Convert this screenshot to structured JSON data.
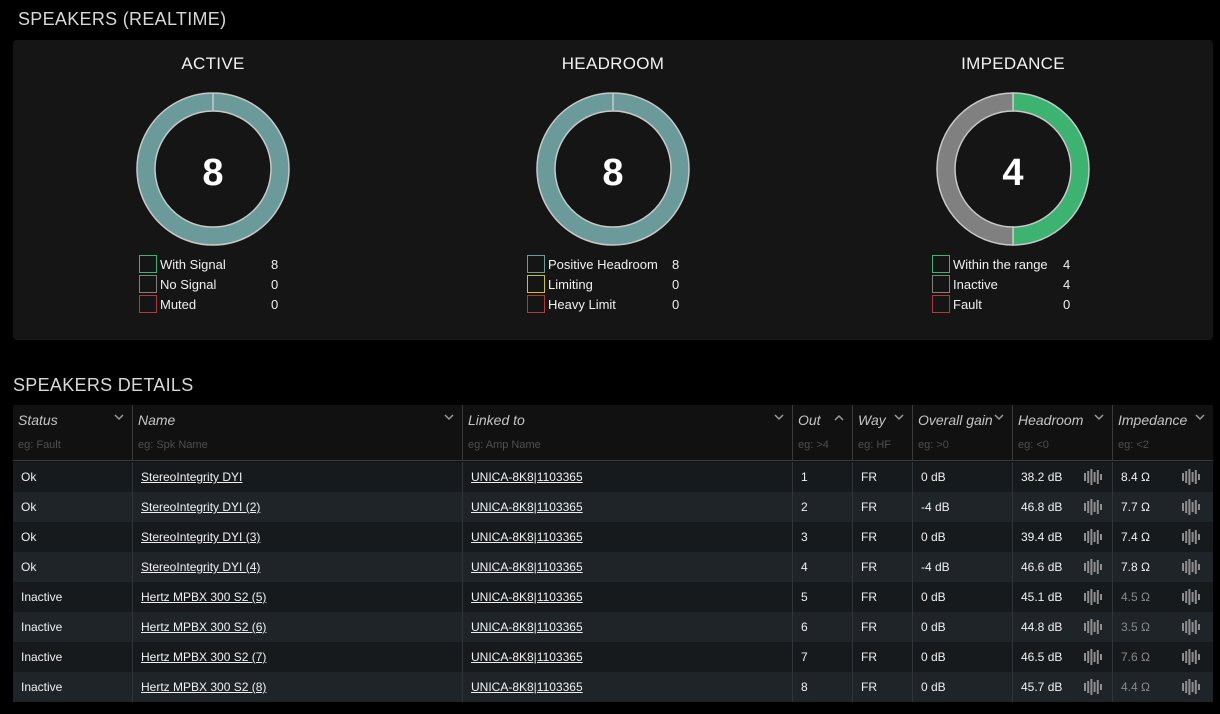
{
  "realtime_title": "SPEAKERS (REALTIME)",
  "details_title": "SPEAKERS DETAILS",
  "colors": {
    "teal": "#6a9a9a",
    "green": "#3cb371",
    "gray": "#808080",
    "yellow": "#c8c032",
    "red": "#b03a3a"
  },
  "gauges": [
    {
      "title": "ACTIVE",
      "count": "8",
      "legend": [
        {
          "label": "With Signal",
          "value": "8",
          "color": "#3cb371"
        },
        {
          "label": "No Signal",
          "value": "0",
          "color": "#808080"
        },
        {
          "label": "Muted",
          "value": "0",
          "color": "#b03a3a"
        }
      ],
      "segments": [
        {
          "value": 8,
          "color": "#6a9a9a"
        }
      ]
    },
    {
      "title": "HEADROOM",
      "count": "8",
      "legend": [
        {
          "label": "Positive Headroom",
          "value": "8",
          "color": "#6a9a9a"
        },
        {
          "label": "Limiting",
          "value": "0",
          "color": "#c8c032"
        },
        {
          "label": "Heavy Limit",
          "value": "0",
          "color": "#b03a3a"
        }
      ],
      "segments": [
        {
          "value": 8,
          "color": "#6a9a9a"
        }
      ]
    },
    {
      "title": "IMPEDANCE",
      "count": "4",
      "legend": [
        {
          "label": "Within the range",
          "value": "4",
          "color": "#3cb371"
        },
        {
          "label": "Inactive",
          "value": "4",
          "color": "#808080"
        },
        {
          "label": "Fault",
          "value": "0",
          "color": "#b03a3a"
        }
      ],
      "segments": [
        {
          "value": 4,
          "color": "#3cb371"
        },
        {
          "value": 4,
          "color": "#808080"
        }
      ]
    }
  ],
  "columns": [
    {
      "label": "Status",
      "filter": "eg: Fault",
      "arrow": "chevron-down-icon"
    },
    {
      "label": "Name",
      "filter": "eg: Spk Name",
      "arrow": "chevron-down-icon"
    },
    {
      "label": "Linked to",
      "filter": "eg: Amp Name",
      "arrow": "chevron-down-icon"
    },
    {
      "label": "Out",
      "filter": "eg: >4",
      "arrow": "chevron-up-icon"
    },
    {
      "label": "Way",
      "filter": "eg: HF",
      "arrow": "chevron-down-icon"
    },
    {
      "label": "Overall gain",
      "filter": "eg: >0",
      "arrow": "chevron-down-icon"
    },
    {
      "label": "Headroom",
      "filter": "eg: <0",
      "arrow": "chevron-down-icon"
    },
    {
      "label": "Impedance",
      "filter": "eg: <2",
      "arrow": "chevron-down-icon"
    }
  ],
  "rows": [
    {
      "status": "Ok",
      "name": "StereoIntegrity DYI",
      "linked": "UNICA-8K8|1103365",
      "out": "1",
      "way": "FR",
      "gain": "0 dB",
      "headroom": "38.2 dB",
      "impedance": "8.4 Ω",
      "imp_dim": false
    },
    {
      "status": "Ok",
      "name": "StereoIntegrity DYI (2)",
      "linked": "UNICA-8K8|1103365",
      "out": "2",
      "way": "FR",
      "gain": "-4 dB",
      "headroom": "46.8 dB",
      "impedance": "7.7 Ω",
      "imp_dim": false
    },
    {
      "status": "Ok",
      "name": "StereoIntegrity DYI (3)",
      "linked": "UNICA-8K8|1103365",
      "out": "3",
      "way": "FR",
      "gain": "0 dB",
      "headroom": "39.4 dB",
      "impedance": "7.4 Ω",
      "imp_dim": false
    },
    {
      "status": "Ok",
      "name": "StereoIntegrity DYI (4)",
      "linked": "UNICA-8K8|1103365",
      "out": "4",
      "way": "FR",
      "gain": "-4 dB",
      "headroom": "46.6 dB",
      "impedance": "7.8 Ω",
      "imp_dim": false
    },
    {
      "status": "Inactive",
      "name": "Hertz MPBX 300 S2 (5)",
      "linked": "UNICA-8K8|1103365",
      "out": "5",
      "way": "FR",
      "gain": "0 dB",
      "headroom": "45.1 dB",
      "impedance": "4.5 Ω",
      "imp_dim": true
    },
    {
      "status": "Inactive",
      "name": "Hertz MPBX 300 S2 (6)",
      "linked": "UNICA-8K8|1103365",
      "out": "6",
      "way": "FR",
      "gain": "0 dB",
      "headroom": "44.8 dB",
      "impedance": "3.5 Ω",
      "imp_dim": true
    },
    {
      "status": "Inactive",
      "name": "Hertz MPBX 300 S2 (7)",
      "linked": "UNICA-8K8|1103365",
      "out": "7",
      "way": "FR",
      "gain": "0 dB",
      "headroom": "46.5 dB",
      "impedance": "7.6 Ω",
      "imp_dim": true
    },
    {
      "status": "Inactive",
      "name": "Hertz MPBX 300 S2 (8)",
      "linked": "UNICA-8K8|1103365",
      "out": "8",
      "way": "FR",
      "gain": "0 dB",
      "headroom": "45.7 dB",
      "impedance": "4.4 Ω",
      "imp_dim": true
    }
  ]
}
